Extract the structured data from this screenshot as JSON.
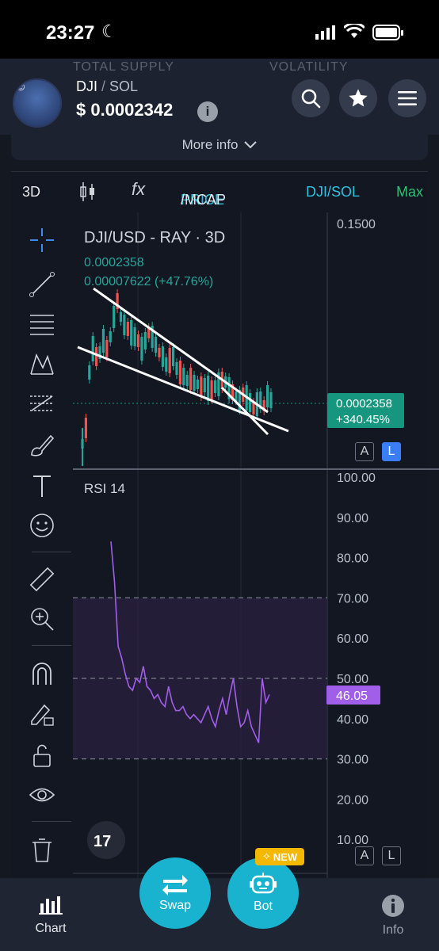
{
  "status_bar": {
    "time": "23:27"
  },
  "header": {
    "hidden_stats": [
      "TOTAL SUPPLY",
      "VOLATILITY"
    ],
    "pair_base": "DJI",
    "pair_sep": "/",
    "pair_quote": "SOL",
    "price": "$ 0.0002342",
    "info_label": "i",
    "more_info": "More info"
  },
  "chart_toolbar": {
    "timeframe": "3D",
    "price_label": "PRICE",
    "mcap_sep": "/MCAP",
    "pair_toggle": "DJI/SOL",
    "range": "Max"
  },
  "price_pane": {
    "title": "DJI/USD - RAY · 3D",
    "last_value": "0.0002358",
    "change_value": "0.00007622 (+47.76%)",
    "axis_top": "0.1500",
    "badge_price": "0.0002358",
    "badge_change": "+340.45%",
    "scale_a": "A",
    "scale_l": "L"
  },
  "rsi_pane": {
    "title": "RSI 14",
    "axis_labels": [
      "100.00",
      "90.00",
      "80.00",
      "70.00",
      "60.00",
      "50.00",
      "40.00",
      "30.00",
      "20.00",
      "10.00"
    ],
    "current_value": "46.05",
    "scale_a": "A",
    "scale_l": "L"
  },
  "chart_data": {
    "type": "line",
    "series": [
      {
        "values": [
          84,
          74,
          58,
          55,
          51,
          48,
          47,
          50,
          49,
          53,
          48,
          47,
          45,
          46,
          44,
          43,
          48,
          44,
          42,
          42,
          43,
          41,
          40,
          41,
          40,
          39,
          41,
          43,
          40,
          38,
          42,
          45,
          41,
          46,
          50,
          43,
          38,
          39,
          42,
          38,
          36,
          34,
          50,
          44,
          46
        ]
      }
    ],
    "ylim": [
      0,
      100
    ],
    "bands": [
      30,
      50,
      70
    ]
  },
  "bottom_nav": {
    "chart_label": "Chart",
    "swap_label": "Swap",
    "bot_label": "Bot",
    "new_badge": "NEW",
    "info_label": "Info"
  },
  "colors": {
    "accent": "#1ab3cf",
    "up": "#26a69a",
    "down": "#ef5350",
    "rsi": "#a15ee8",
    "price_badge": "#16957f",
    "max": "#2fbf71"
  }
}
